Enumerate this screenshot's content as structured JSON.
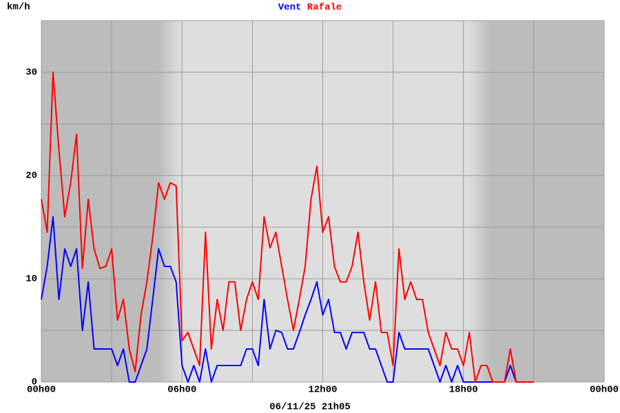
{
  "chart_data": {
    "type": "line",
    "ylabel": "km/h",
    "timestamp": "06/11/25 21h05",
    "x": [
      0,
      0.25,
      0.5,
      0.75,
      1,
      1.25,
      1.5,
      1.75,
      2,
      2.25,
      2.5,
      2.75,
      3,
      3.25,
      3.5,
      3.75,
      4,
      4.25,
      4.5,
      4.75,
      5,
      5.25,
      5.5,
      5.75,
      6,
      6.25,
      6.5,
      6.75,
      7,
      7.25,
      7.5,
      7.75,
      8,
      8.25,
      8.5,
      8.75,
      9,
      9.25,
      9.5,
      9.75,
      10,
      10.25,
      10.5,
      10.75,
      11,
      11.25,
      11.5,
      11.75,
      12,
      12.25,
      12.5,
      12.75,
      13,
      13.25,
      13.5,
      13.75,
      14,
      14.25,
      14.5,
      14.75,
      15,
      15.25,
      15.5,
      15.75,
      16,
      16.25,
      16.5,
      16.75,
      17,
      17.25,
      17.5,
      17.75,
      18,
      18.25,
      18.5,
      18.75,
      19,
      19.25,
      19.5,
      19.75,
      20,
      20.25,
      20.5,
      20.75,
      21
    ],
    "series": [
      {
        "name": "Vent",
        "color": "#0000ff",
        "values": [
          8,
          11.2,
          16,
          8,
          12.9,
          11.2,
          12.9,
          5,
          9.7,
          3.2,
          3.2,
          3.2,
          3.2,
          1.6,
          3.2,
          0,
          0,
          1.6,
          3.2,
          8,
          12.9,
          11.2,
          11.2,
          9.7,
          1.6,
          0,
          1.6,
          0,
          3.2,
          0,
          1.6,
          1.6,
          1.6,
          1.6,
          1.6,
          3.2,
          3.2,
          1.6,
          8,
          3.2,
          5,
          4.8,
          3.2,
          3.2,
          4.8,
          6.5,
          8,
          9.7,
          6.5,
          8,
          4.8,
          4.8,
          3.2,
          4.8,
          4.8,
          4.8,
          3.2,
          3.2,
          1.6,
          0,
          0,
          4.8,
          3.2,
          3.2,
          3.2,
          3.2,
          3.2,
          1.6,
          0,
          1.6,
          0,
          1.6,
          0,
          0,
          0,
          0,
          0,
          0,
          0,
          0,
          1.6,
          0,
          0,
          0,
          0
        ]
      },
      {
        "name": "Rafale",
        "color": "#ff0000",
        "values": [
          17.7,
          14.5,
          30,
          22.5,
          16,
          19.3,
          24,
          11,
          17.7,
          12.9,
          11,
          11.2,
          12.9,
          6,
          8,
          3.2,
          1,
          6.5,
          9.7,
          14,
          19.3,
          17.7,
          19.3,
          19,
          4,
          4.8,
          3.2,
          1.6,
          14.5,
          3.2,
          8,
          5,
          9.7,
          9.7,
          5,
          8,
          9.7,
          8,
          16,
          13,
          14.5,
          11.2,
          8,
          5,
          8,
          11.2,
          17.7,
          20.9,
          14.5,
          16,
          11.2,
          9.7,
          9.7,
          11.2,
          14.5,
          9.7,
          6,
          9.7,
          4.8,
          4.8,
          1.6,
          12.9,
          8,
          9.7,
          8,
          8,
          4.8,
          3.2,
          1.6,
          4.8,
          3.2,
          3.2,
          1.6,
          4.8,
          0,
          1.6,
          1.6,
          0,
          0,
          0,
          3.2,
          0,
          0,
          0,
          0
        ]
      }
    ],
    "xlim": [
      0,
      24
    ],
    "xticks": [
      {
        "value": 0,
        "label": "00h00"
      },
      {
        "value": 6,
        "label": "06h00"
      },
      {
        "value": 12,
        "label": "12h00"
      },
      {
        "value": 18,
        "label": "18h00"
      },
      {
        "value": 24,
        "label": "00h00"
      }
    ],
    "xgrid": [
      0,
      3,
      6,
      9,
      12,
      15,
      18,
      21,
      24
    ],
    "ylim": [
      0,
      35
    ],
    "yticks": [
      0,
      10,
      20,
      30
    ],
    "ygrid": [
      0,
      5,
      10,
      15,
      20,
      25,
      30,
      35
    ]
  }
}
